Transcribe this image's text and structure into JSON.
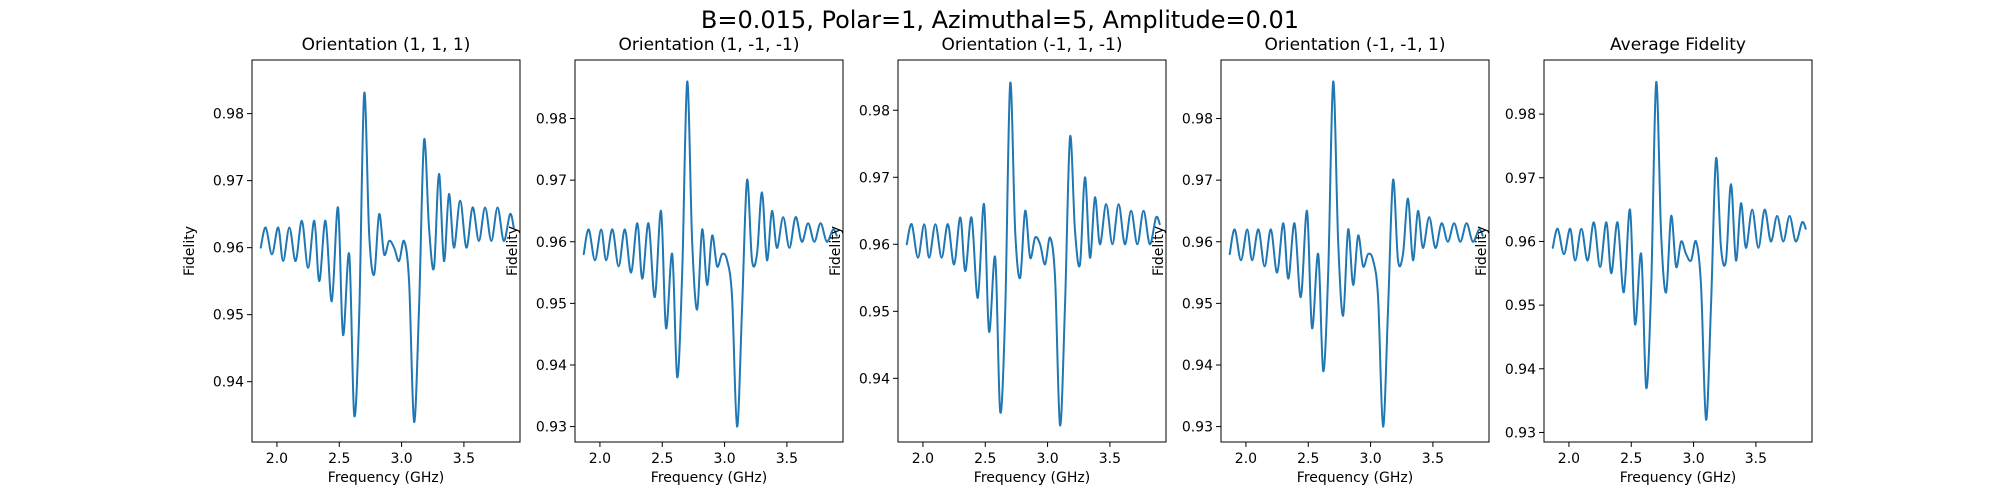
{
  "figure_title": "B=0.015, Polar=1, Azimuthal=5, Amplitude=0.01",
  "colors": {
    "line": "#1f77b4",
    "axes": "#000000",
    "background": "#ffffff"
  },
  "chart_data": [
    {
      "type": "line",
      "title": "Orientation (1, 1, 1)",
      "xlabel": "Frequency (GHz)",
      "ylabel": "Fidelity",
      "xlim": [
        1.8,
        3.95
      ],
      "ylim": [
        0.931,
        0.988
      ],
      "xticks": [
        2.0,
        2.5,
        3.0,
        3.5
      ],
      "xtick_labels": [
        "2.0",
        "2.5",
        "3.0",
        "3.5"
      ],
      "yticks": [
        0.94,
        0.95,
        0.96,
        0.97,
        0.98
      ],
      "ytick_labels": [
        "0.94",
        "0.95",
        "0.96",
        "0.97",
        "0.98"
      ],
      "grid": false,
      "series": [
        {
          "color": "#1f77b4",
          "x": [
            1.87,
            1.91,
            1.96,
            2.01,
            2.05,
            2.1,
            2.15,
            2.2,
            2.25,
            2.3,
            2.34,
            2.39,
            2.44,
            2.49,
            2.53,
            2.58,
            2.62,
            2.66,
            2.7,
            2.74,
            2.78,
            2.82,
            2.86,
            2.9,
            2.94,
            2.98,
            3.02,
            3.06,
            3.1,
            3.14,
            3.18,
            3.22,
            3.26,
            3.3,
            3.34,
            3.38,
            3.42,
            3.47,
            3.52,
            3.57,
            3.62,
            3.67,
            3.72,
            3.77,
            3.82,
            3.87,
            3.9
          ],
          "y": [
            0.96,
            0.963,
            0.959,
            0.963,
            0.958,
            0.963,
            0.958,
            0.964,
            0.957,
            0.964,
            0.955,
            0.964,
            0.952,
            0.966,
            0.947,
            0.959,
            0.935,
            0.95,
            0.983,
            0.962,
            0.956,
            0.965,
            0.959,
            0.961,
            0.96,
            0.958,
            0.961,
            0.955,
            0.934,
            0.951,
            0.976,
            0.963,
            0.957,
            0.971,
            0.958,
            0.968,
            0.96,
            0.967,
            0.96,
            0.966,
            0.961,
            0.966,
            0.961,
            0.966,
            0.961,
            0.965,
            0.963
          ]
        }
      ]
    },
    {
      "type": "line",
      "title": "Orientation (1, -1, -1)",
      "xlabel": "Frequency (GHz)",
      "ylabel": "Fidelity",
      "xlim": [
        1.8,
        3.95
      ],
      "ylim": [
        0.9275,
        0.9895
      ],
      "xticks": [
        2.0,
        2.5,
        3.0,
        3.5
      ],
      "xtick_labels": [
        "2.0",
        "2.5",
        "3.0",
        "3.5"
      ],
      "yticks": [
        0.93,
        0.94,
        0.95,
        0.96,
        0.97,
        0.98
      ],
      "ytick_labels": [
        "0.93",
        "0.94",
        "0.95",
        "0.96",
        "0.97",
        "0.98"
      ],
      "grid": false,
      "series": [
        {
          "color": "#1f77b4",
          "x": [
            1.87,
            1.91,
            1.96,
            2.01,
            2.05,
            2.1,
            2.15,
            2.2,
            2.25,
            2.3,
            2.34,
            2.39,
            2.44,
            2.49,
            2.53,
            2.58,
            2.62,
            2.66,
            2.7,
            2.74,
            2.78,
            2.82,
            2.86,
            2.9,
            2.94,
            2.98,
            3.02,
            3.06,
            3.1,
            3.14,
            3.18,
            3.22,
            3.26,
            3.3,
            3.34,
            3.38,
            3.42,
            3.47,
            3.52,
            3.57,
            3.62,
            3.67,
            3.72,
            3.77,
            3.82,
            3.87,
            3.9
          ],
          "y": [
            0.958,
            0.962,
            0.957,
            0.962,
            0.957,
            0.962,
            0.956,
            0.962,
            0.955,
            0.963,
            0.954,
            0.963,
            0.951,
            0.965,
            0.946,
            0.958,
            0.938,
            0.955,
            0.986,
            0.96,
            0.949,
            0.962,
            0.953,
            0.961,
            0.956,
            0.958,
            0.957,
            0.951,
            0.93,
            0.949,
            0.97,
            0.957,
            0.958,
            0.968,
            0.957,
            0.965,
            0.959,
            0.964,
            0.959,
            0.964,
            0.96,
            0.963,
            0.96,
            0.963,
            0.96,
            0.962,
            0.961
          ]
        }
      ]
    },
    {
      "type": "line",
      "title": "Orientation (-1, 1, -1)",
      "xlabel": "Frequency (GHz)",
      "ylabel": "Fidelity",
      "xlim": [
        1.8,
        3.95
      ],
      "ylim": [
        0.9305,
        0.9875
      ],
      "xticks": [
        2.0,
        2.5,
        3.0,
        3.5
      ],
      "xtick_labels": [
        "2.0",
        "2.5",
        "3.0",
        "3.5"
      ],
      "yticks": [
        0.94,
        0.95,
        0.96,
        0.97,
        0.98
      ],
      "ytick_labels": [
        "0.94",
        "0.95",
        "0.96",
        "0.97",
        "0.98"
      ],
      "grid": false,
      "series": [
        {
          "color": "#1f77b4",
          "x": [
            1.87,
            1.91,
            1.96,
            2.01,
            2.05,
            2.1,
            2.15,
            2.2,
            2.25,
            2.3,
            2.34,
            2.39,
            2.44,
            2.49,
            2.53,
            2.58,
            2.62,
            2.66,
            2.7,
            2.74,
            2.78,
            2.82,
            2.86,
            2.9,
            2.94,
            2.98,
            3.02,
            3.06,
            3.1,
            3.14,
            3.18,
            3.22,
            3.26,
            3.3,
            3.34,
            3.38,
            3.42,
            3.47,
            3.52,
            3.57,
            3.62,
            3.67,
            3.72,
            3.77,
            3.82,
            3.87,
            3.9
          ],
          "y": [
            0.96,
            0.963,
            0.958,
            0.963,
            0.958,
            0.963,
            0.958,
            0.963,
            0.957,
            0.964,
            0.956,
            0.964,
            0.952,
            0.966,
            0.947,
            0.958,
            0.935,
            0.95,
            0.984,
            0.962,
            0.955,
            0.965,
            0.958,
            0.961,
            0.96,
            0.957,
            0.961,
            0.955,
            0.933,
            0.951,
            0.976,
            0.962,
            0.957,
            0.97,
            0.958,
            0.967,
            0.96,
            0.966,
            0.96,
            0.966,
            0.96,
            0.965,
            0.96,
            0.965,
            0.96,
            0.964,
            0.963
          ]
        }
      ]
    },
    {
      "type": "line",
      "title": "Orientation (-1, -1, 1)",
      "xlabel": "Frequency (GHz)",
      "ylabel": "Fidelity",
      "xlim": [
        1.8,
        3.95
      ],
      "ylim": [
        0.9275,
        0.9895
      ],
      "xticks": [
        2.0,
        2.5,
        3.0,
        3.5
      ],
      "xtick_labels": [
        "2.0",
        "2.5",
        "3.0",
        "3.5"
      ],
      "yticks": [
        0.93,
        0.94,
        0.95,
        0.96,
        0.97,
        0.98
      ],
      "ytick_labels": [
        "0.93",
        "0.94",
        "0.95",
        "0.96",
        "0.97",
        "0.98"
      ],
      "grid": false,
      "series": [
        {
          "color": "#1f77b4",
          "x": [
            1.87,
            1.91,
            1.96,
            2.01,
            2.05,
            2.1,
            2.15,
            2.2,
            2.25,
            2.3,
            2.34,
            2.39,
            2.44,
            2.49,
            2.53,
            2.58,
            2.62,
            2.66,
            2.7,
            2.74,
            2.78,
            2.82,
            2.86,
            2.9,
            2.94,
            2.98,
            3.02,
            3.06,
            3.1,
            3.14,
            3.18,
            3.22,
            3.26,
            3.3,
            3.34,
            3.38,
            3.42,
            3.47,
            3.52,
            3.57,
            3.62,
            3.67,
            3.72,
            3.77,
            3.82,
            3.87,
            3.9
          ],
          "y": [
            0.958,
            0.962,
            0.957,
            0.962,
            0.957,
            0.962,
            0.956,
            0.962,
            0.955,
            0.963,
            0.954,
            0.963,
            0.951,
            0.965,
            0.946,
            0.958,
            0.939,
            0.955,
            0.986,
            0.96,
            0.948,
            0.962,
            0.953,
            0.961,
            0.956,
            0.958,
            0.957,
            0.951,
            0.93,
            0.949,
            0.97,
            0.957,
            0.958,
            0.967,
            0.957,
            0.965,
            0.959,
            0.964,
            0.959,
            0.963,
            0.96,
            0.963,
            0.96,
            0.963,
            0.96,
            0.962,
            0.961
          ]
        }
      ]
    },
    {
      "type": "line",
      "title": "Average Fidelity",
      "xlabel": "Frequency (GHz)",
      "ylabel": "Fidelity",
      "xlim": [
        1.8,
        3.95
      ],
      "ylim": [
        0.9285,
        0.9885
      ],
      "xticks": [
        2.0,
        2.5,
        3.0,
        3.5
      ],
      "xtick_labels": [
        "2.0",
        "2.5",
        "3.0",
        "3.5"
      ],
      "yticks": [
        0.93,
        0.94,
        0.95,
        0.96,
        0.97,
        0.98
      ],
      "ytick_labels": [
        "0.93",
        "0.94",
        "0.95",
        "0.96",
        "0.97",
        "0.98"
      ],
      "grid": false,
      "series": [
        {
          "color": "#1f77b4",
          "x": [
            1.87,
            1.91,
            1.96,
            2.01,
            2.05,
            2.1,
            2.15,
            2.2,
            2.25,
            2.3,
            2.34,
            2.39,
            2.44,
            2.49,
            2.53,
            2.58,
            2.62,
            2.66,
            2.7,
            2.74,
            2.78,
            2.82,
            2.86,
            2.9,
            2.94,
            2.98,
            3.02,
            3.06,
            3.1,
            3.14,
            3.18,
            3.22,
            3.26,
            3.3,
            3.34,
            3.38,
            3.42,
            3.47,
            3.52,
            3.57,
            3.62,
            3.67,
            3.72,
            3.77,
            3.82,
            3.87,
            3.9
          ],
          "y": [
            0.959,
            0.962,
            0.958,
            0.962,
            0.957,
            0.962,
            0.957,
            0.963,
            0.956,
            0.963,
            0.955,
            0.963,
            0.952,
            0.965,
            0.947,
            0.958,
            0.937,
            0.953,
            0.985,
            0.961,
            0.952,
            0.964,
            0.956,
            0.96,
            0.958,
            0.957,
            0.96,
            0.953,
            0.932,
            0.95,
            0.973,
            0.959,
            0.957,
            0.969,
            0.957,
            0.966,
            0.959,
            0.965,
            0.959,
            0.965,
            0.96,
            0.964,
            0.96,
            0.964,
            0.96,
            0.963,
            0.962
          ]
        }
      ]
    }
  ]
}
